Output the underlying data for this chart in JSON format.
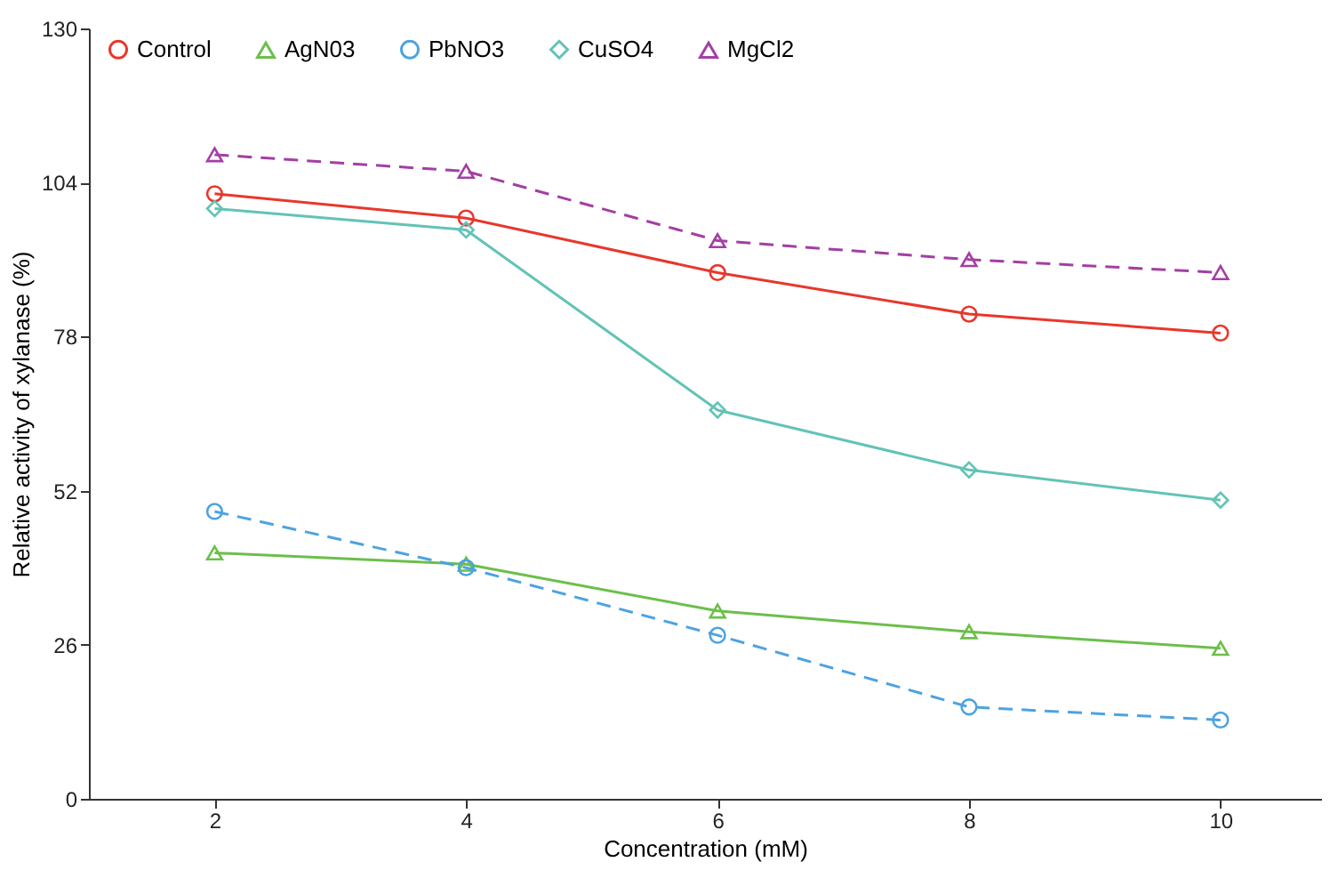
{
  "chart_data": {
    "type": "line",
    "xlabel": "Concentration (mM)",
    "ylabel": "Relative activity of xylanase (%)",
    "x": [
      2,
      4,
      6,
      8,
      10
    ],
    "xlim": [
      1,
      10.8
    ],
    "xticks": [
      2,
      4,
      6,
      8,
      10
    ],
    "ylim": [
      0,
      130
    ],
    "yticks": [
      0,
      26,
      52,
      78,
      104,
      130
    ],
    "grid": false,
    "legend": "top",
    "series": [
      {
        "name": "Control",
        "color": "#e8372c",
        "marker": "circle",
        "line_style": "solid",
        "values": [
          102.1,
          98.0,
          88.8,
          81.8,
          78.6
        ]
      },
      {
        "name": "AgN03",
        "color": "#6cbf4a",
        "marker": "triangle",
        "line_style": "solid",
        "values": [
          41.5,
          39.6,
          31.7,
          28.2,
          25.4
        ]
      },
      {
        "name": "PbNO3",
        "color": "#4da3e0",
        "marker": "circle",
        "line_style": "dashed",
        "values": [
          48.5,
          39.0,
          27.6,
          15.5,
          13.3
        ]
      },
      {
        "name": "CuSO4",
        "color": "#62c3b6",
        "marker": "diamond",
        "line_style": "solid",
        "values": [
          99.6,
          96.0,
          65.6,
          55.5,
          50.4
        ]
      },
      {
        "name": "MgCl2",
        "color": "#a33fa3",
        "marker": "triangle",
        "line_style": "dashed",
        "values": [
          108.7,
          105.9,
          94.2,
          91.0,
          88.8
        ]
      }
    ]
  }
}
